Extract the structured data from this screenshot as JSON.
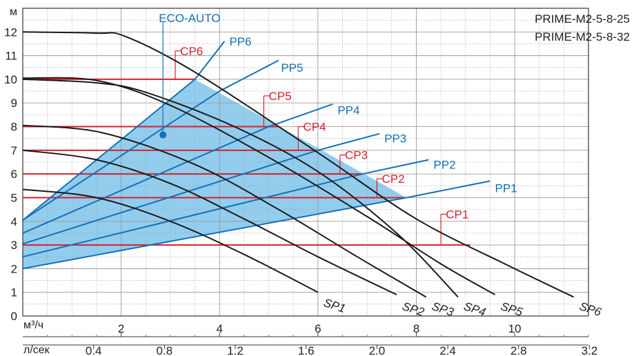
{
  "chart_data": {
    "type": "line",
    "title": "",
    "models": [
      "PRIME-M2-5-8-25",
      "PRIME-M2-5-8-32"
    ],
    "ylabel": "м",
    "xlabel": "м³/ч",
    "x2label": "л/сек",
    "ylim": [
      0,
      13
    ],
    "xlim": [
      0,
      11.5
    ],
    "y_ticks": [
      "0",
      "1",
      "2",
      "3",
      "4",
      "5",
      "6",
      "7",
      "8",
      "9",
      "10",
      "11",
      "12"
    ],
    "x_ticks": [
      {
        "v": 2,
        "label": "2"
      },
      {
        "v": 4,
        "label": "4"
      },
      {
        "v": 6,
        "label": "6"
      },
      {
        "v": 8,
        "label": "8"
      },
      {
        "v": 10,
        "label": "10"
      }
    ],
    "x2_ticks": [
      {
        "v": 1.44,
        "label": "0.4"
      },
      {
        "v": 2.88,
        "label": "0.8"
      },
      {
        "v": 4.32,
        "label": "1.2"
      },
      {
        "v": 5.76,
        "label": "1.6"
      },
      {
        "v": 7.2,
        "label": "2.0"
      },
      {
        "v": 8.64,
        "label": "2.4"
      },
      {
        "v": 10.08,
        "label": "2.8"
      },
      {
        "v": 11.52,
        "label": "3.2"
      }
    ],
    "grid": true,
    "sp_series": [
      {
        "name": "SP1",
        "points": [
          [
            0,
            5.35
          ],
          [
            1.5,
            5.0
          ],
          [
            3,
            4.0
          ],
          [
            4.5,
            2.6
          ],
          [
            6,
            1.0
          ]
        ]
      },
      {
        "name": "SP2",
        "points": [
          [
            0,
            7.0
          ],
          [
            1.5,
            6.6
          ],
          [
            3,
            5.6
          ],
          [
            4.5,
            4.1
          ],
          [
            6,
            2.5
          ],
          [
            7.6,
            0.9
          ]
        ]
      },
      {
        "name": "SP3",
        "points": [
          [
            0,
            8.05
          ],
          [
            1.6,
            7.75
          ],
          [
            3.5,
            6.4
          ],
          [
            5.2,
            4.5
          ],
          [
            6.8,
            2.5
          ],
          [
            8.2,
            0.8
          ]
        ]
      },
      {
        "name": "SP4",
        "points": [
          [
            0,
            10.0
          ],
          [
            1.5,
            9.85
          ],
          [
            2.5,
            9.45
          ],
          [
            4.3,
            8.0
          ],
          [
            6,
            6.1
          ],
          [
            7.6,
            3.5
          ],
          [
            8.85,
            0.8
          ]
        ]
      },
      {
        "name": "SP5",
        "points": [
          [
            0,
            10.05
          ],
          [
            1.5,
            9.95
          ],
          [
            3,
            8.9
          ],
          [
            5,
            6.7
          ],
          [
            7,
            4.2
          ],
          [
            8.5,
            2.2
          ],
          [
            9.6,
            0.9
          ]
        ]
      },
      {
        "name": "SP6",
        "points": [
          [
            0,
            12.0
          ],
          [
            1.5,
            11.95
          ],
          [
            2.1,
            11.8
          ],
          [
            3.5,
            10.3
          ],
          [
            6,
            6.9
          ],
          [
            8,
            4.1
          ],
          [
            9.8,
            2.2
          ],
          [
            11.2,
            0.8
          ]
        ]
      }
    ],
    "sp_label_offsets": [
      [
        6.1,
        0.6
      ],
      [
        7.7,
        0.45
      ],
      [
        8.3,
        0.45
      ],
      [
        8.95,
        0.45
      ],
      [
        9.7,
        0.45
      ],
      [
        11.3,
        0.45
      ]
    ],
    "pp_series": [
      {
        "name": "PP1",
        "points": [
          [
            0,
            2.0
          ],
          [
            7.8,
            5.0
          ],
          [
            9.5,
            5.7
          ]
        ],
        "label_at": [
          9.6,
          5.4
        ]
      },
      {
        "name": "PP2",
        "points": [
          [
            0,
            2.5
          ],
          [
            6.9,
            6.0
          ],
          [
            8.25,
            6.6
          ]
        ],
        "label_at": [
          8.35,
          6.4
        ]
      },
      {
        "name": "PP3",
        "points": [
          [
            0,
            3.05
          ],
          [
            6.0,
            7.0
          ],
          [
            7.25,
            7.7
          ]
        ],
        "label_at": [
          7.35,
          7.5
        ]
      },
      {
        "name": "PP4",
        "points": [
          [
            0,
            3.5
          ],
          [
            5.0,
            8.0
          ],
          [
            6.3,
            8.95
          ]
        ],
        "label_at": [
          6.4,
          8.7
        ]
      },
      {
        "name": "PP5",
        "points": [
          [
            0,
            4.05
          ],
          [
            4.0,
            9.5
          ],
          [
            5.2,
            10.8
          ]
        ],
        "label_at": [
          5.25,
          10.5
        ]
      },
      {
        "name": "PP6",
        "points": [
          [
            0,
            4.05
          ],
          [
            3.5,
            10.0
          ],
          [
            4.1,
            11.6
          ]
        ],
        "label_at": [
          4.2,
          11.6
        ]
      }
    ],
    "cp_series": [
      {
        "name": "CP1",
        "y": 3.0,
        "x_end": 9.1,
        "tick_x": 8.5,
        "tick_top": 4.3,
        "label_at": [
          8.6,
          4.3
        ]
      },
      {
        "name": "CP2",
        "y": 5.0,
        "x_end": 7.8,
        "tick_x": 7.2,
        "tick_top": 5.8,
        "label_at": [
          7.3,
          5.8
        ]
      },
      {
        "name": "CP3",
        "y": 6.0,
        "x_end": 6.9,
        "tick_x": 6.45,
        "tick_top": 6.8,
        "label_at": [
          6.55,
          6.8
        ]
      },
      {
        "name": "CP4",
        "y": 7.0,
        "x_end": 6.05,
        "tick_x": 5.6,
        "tick_top": 8.0,
        "label_at": [
          5.7,
          8.0
        ]
      },
      {
        "name": "CP5",
        "y": 8.0,
        "x_end": 5.2,
        "tick_x": 4.9,
        "tick_top": 9.3,
        "label_at": [
          5.0,
          9.3
        ]
      },
      {
        "name": "CP6",
        "y": 10.0,
        "x_end": 3.5,
        "tick_x": 3.1,
        "tick_top": 11.2,
        "label_at": [
          3.2,
          11.2
        ]
      }
    ],
    "operating_area": {
      "color": "#7fc4eb",
      "polygon": [
        [
          0,
          2.0
        ],
        [
          7.8,
          5.0
        ],
        [
          3.5,
          10.0
        ],
        [
          0,
          4.05
        ]
      ]
    },
    "eco_auto": {
      "label": "ECO-AUTO",
      "x": 2.85,
      "y": 7.65,
      "line_top": 12.4
    },
    "colors": {
      "sp": "#1a1a1a",
      "pp": "#1470b5",
      "cp": "#d6202a",
      "area": "#7fc4eb",
      "grid": "#9a9a9a"
    }
  }
}
